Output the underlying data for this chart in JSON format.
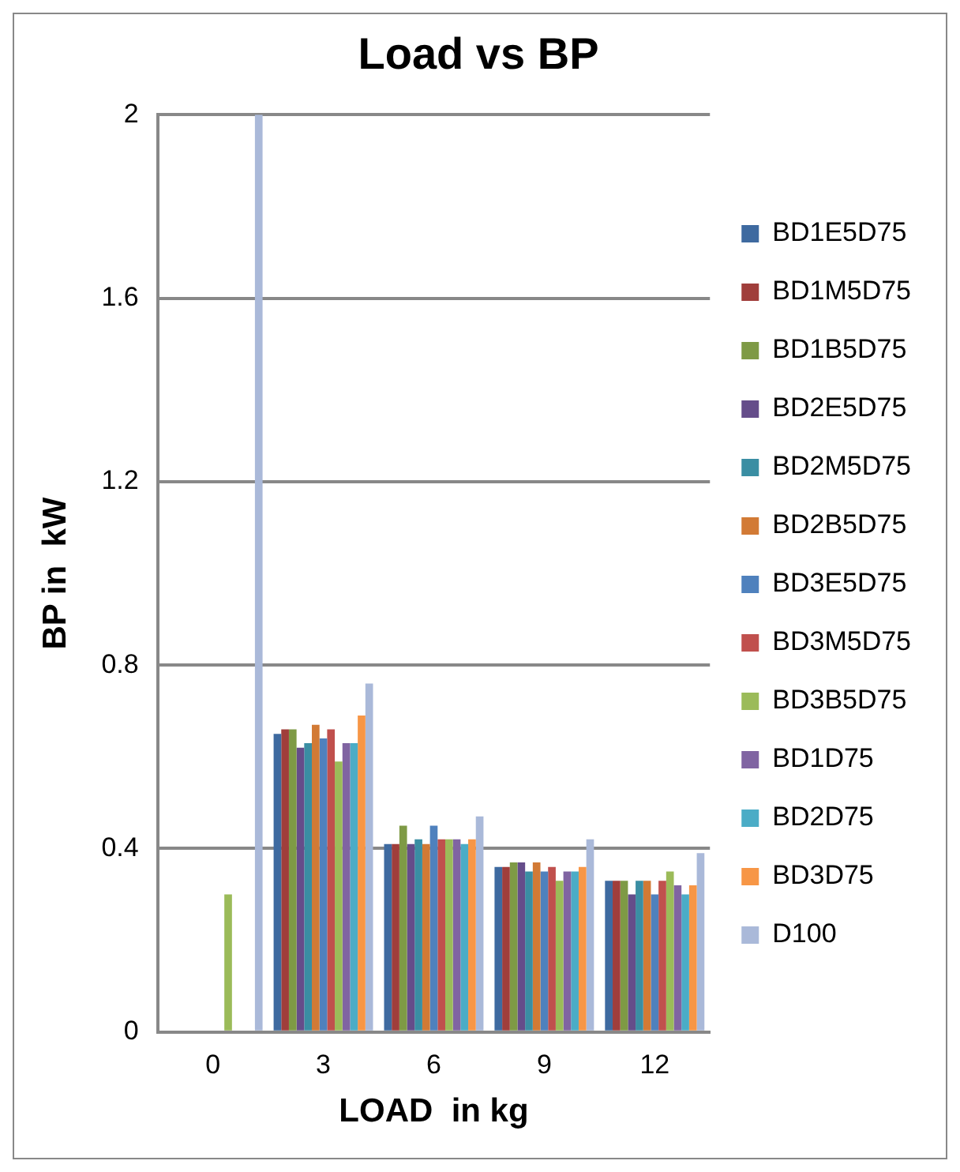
{
  "chart_data": {
    "type": "bar",
    "title": "Load vs BP",
    "xlabel": "LOAD  in kg",
    "ylabel": "BP in  kW",
    "categories": [
      "0",
      "3",
      "6",
      "9",
      "12"
    ],
    "series": [
      {
        "name": "BD1E5D75",
        "color": "#3e6aa0",
        "values": [
          null,
          0.65,
          0.41,
          0.36,
          0.33
        ]
      },
      {
        "name": "BD1M5D75",
        "color": "#a03e3b",
        "values": [
          null,
          0.66,
          0.41,
          0.36,
          0.33
        ]
      },
      {
        "name": "BD1B5D75",
        "color": "#7e9a45",
        "values": [
          null,
          0.66,
          0.45,
          0.37,
          0.33
        ]
      },
      {
        "name": "BD2E5D75",
        "color": "#654d8a",
        "values": [
          null,
          0.62,
          0.41,
          0.37,
          0.3
        ]
      },
      {
        "name": "BD2M5D75",
        "color": "#3a8ea3",
        "values": [
          null,
          0.63,
          0.42,
          0.35,
          0.33
        ]
      },
      {
        "name": "BD2B5D75",
        "color": "#d27a35",
        "values": [
          null,
          0.67,
          0.41,
          0.37,
          0.33
        ]
      },
      {
        "name": "BD3E5D75",
        "color": "#4f81bd",
        "values": [
          null,
          0.64,
          0.45,
          0.35,
          0.3
        ]
      },
      {
        "name": "BD3M5D75",
        "color": "#c0504d",
        "values": [
          null,
          0.66,
          0.42,
          0.36,
          0.33
        ]
      },
      {
        "name": "BD3B5D75",
        "color": "#9bbb59",
        "values": [
          0.3,
          0.59,
          0.42,
          0.33,
          0.35
        ]
      },
      {
        "name": "BD1D75",
        "color": "#8064a2",
        "values": [
          null,
          0.63,
          0.42,
          0.35,
          0.32
        ]
      },
      {
        "name": "BD2D75",
        "color": "#4bacc6",
        "values": [
          null,
          0.63,
          0.41,
          0.35,
          0.3
        ]
      },
      {
        "name": "BD3D75",
        "color": "#f79646",
        "values": [
          null,
          0.69,
          0.42,
          0.36,
          0.32
        ]
      },
      {
        "name": "D100",
        "color": "#aab9d9",
        "values": [
          2,
          0.76,
          0.47,
          0.42,
          0.39
        ]
      }
    ],
    "ylim": [
      0,
      2
    ],
    "yticks": [
      0,
      0.4,
      0.8,
      1.2,
      1.6,
      2
    ],
    "grid": "y",
    "legend": "right"
  }
}
